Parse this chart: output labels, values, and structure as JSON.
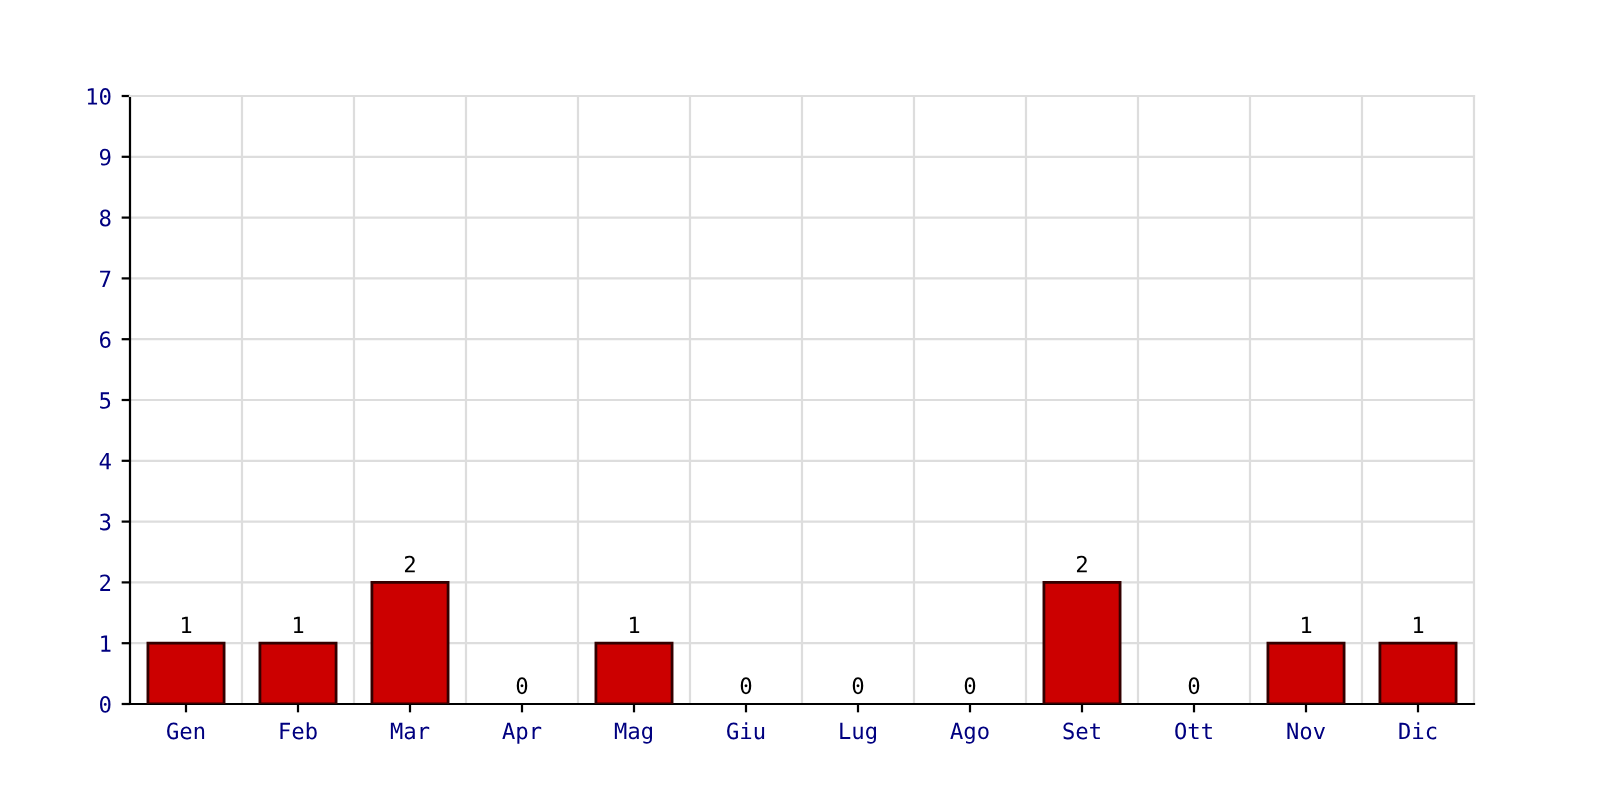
{
  "chart_data": {
    "type": "bar",
    "categories": [
      "Gen",
      "Feb",
      "Mar",
      "Apr",
      "Mag",
      "Giu",
      "Lug",
      "Ago",
      "Set",
      "Ott",
      "Nov",
      "Dic"
    ],
    "values": [
      1,
      1,
      2,
      0,
      1,
      0,
      0,
      0,
      2,
      0,
      1,
      1
    ],
    "color": "#cc0000",
    "ylim": [
      0,
      10
    ],
    "yticks": [
      0,
      1,
      2,
      3,
      4,
      5,
      6,
      7,
      8,
      9,
      10
    ],
    "grid": true,
    "data_labels": true
  }
}
